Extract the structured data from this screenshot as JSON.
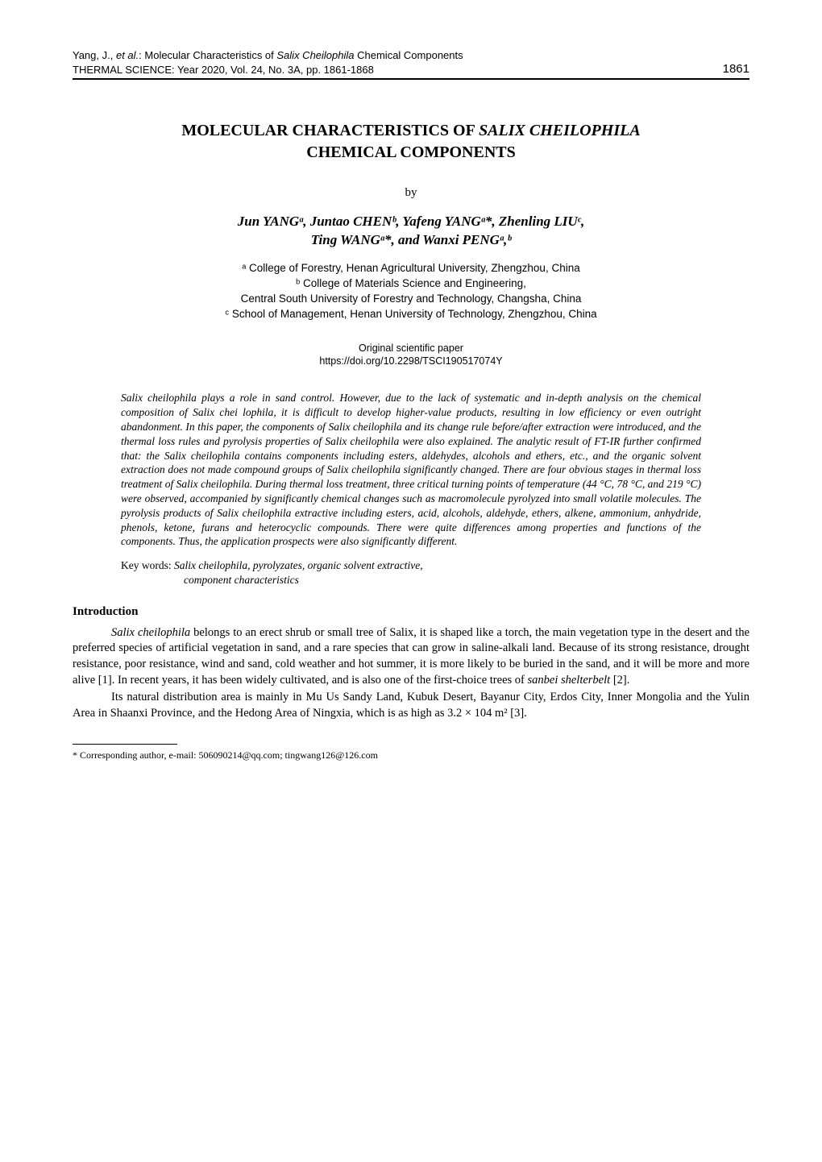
{
  "header": {
    "authors_line": "Yang, J., ",
    "authors_etal": "et al.",
    "authors_rest": ": Molecular Characteristics of ",
    "authors_species": "Salix Cheilophila",
    "authors_end": " Chemical Components",
    "journal_line": "THERMAL SCIENCE: Year 2020, Vol. 24, No. 3A, pp. 1861-1868",
    "page_number": "1861"
  },
  "title": {
    "line1_pre": "MOLECULAR  CHARACTERISTICS  OF  ",
    "line1_species": "SALIX  CHEILOPHILA",
    "line2": "CHEMICAL  COMPONENTS"
  },
  "by": "by",
  "authors": {
    "line1": "Jun YANGᵃ, Juntao CHENᵇ, Yafeng YANGᵃ*, Zhenling LIUᶜ,",
    "line2": "Ting WANGᵃ*, and Wanxi PENGᵃ,ᵇ"
  },
  "affiliations": {
    "a": "ᵃ College of Forestry, Henan Agricultural University, Zhengzhou, China",
    "b": "ᵇ College of Materials Science and Engineering,",
    "b2": "Central South University of Forestry and Technology, Changsha, China",
    "c": "ᶜ School of Management, Henan University of Technology, Zhengzhou, China"
  },
  "paper_type": {
    "line1": "Original scientific paper",
    "line2": "https://doi.org/10.2298/TSCI190517074Y"
  },
  "abstract": "Salix cheilophila plays a role in sand control. However, due to the lack of systematic and in-depth analysis on the chemical composition of Salix chei lophila, it is difficult to develop higher-value products, resulting in low efficiency or even outright abandonment. In this paper, the components of Salix cheilophila and its change rule before/after extraction were introduced, and the thermal loss rules and pyrolysis properties of Salix cheilophila were also explained. The analytic result of FT-IR further confirmed that: the Salix cheilophila contains components including esters, aldehydes, alcohols and ethers, etc., and the organic solvent extraction does not made compound groups of Salix cheilophila significantly changed. There are four obvious stages in thermal loss treatment of Salix cheilophila. During thermal loss treatment, three critical turning points of temperature (44 °C, 78 °C, and 219 °C) were observed, accompanied by significantly chemical changes such as macromolecule pyrolyzed into small volatile molecules. The pyrolysis products of Salix cheilophila extractive including esters, acid, alcohols, aldehyde, ethers, alkene, ammonium, anhydride, phenols, ketone, furans and heterocyclic compounds. There were quite differences among properties and functions of the components. Thus, the application prospects were also significantly different.",
  "keywords": {
    "label": "Key words: ",
    "content1": "Salix cheilophila, pyrolyzates, organic solvent extractive,",
    "content2": "component characteristics"
  },
  "section": "Introduction",
  "para1": {
    "species": "Salix cheilophila",
    "text": " belongs to an erect shrub or small tree of Salix, it is shaped like a torch, the main vegetation type in the desert and the preferred species of artificial vegetation in sand, and a rare species that can grow in saline-alkali land. Because of its strong resistance, drought resistance, poor resistance, wind and sand, cold weather and hot summer, it is more likely to be buried in the sand, and it will be more and more alive [1]. In recent years, it has been widely cultivated, and is also one of the first-choice trees of ",
    "species2": "sanbei shelterbelt",
    "end": " [2]."
  },
  "para2": "Its natural distribution area is mainly in Mu Us Sandy Land, Kubuk Desert, Bayanur City, Erdos City, Inner Mongolia and the Yulin Area in Shaanxi Province, and the Hedong Area of Ningxia, which is as high as 3.2 × 104 m² [3].",
  "footnote": "* Corresponding author, e-mail: 506090214@qq.com; tingwang126@126.com"
}
